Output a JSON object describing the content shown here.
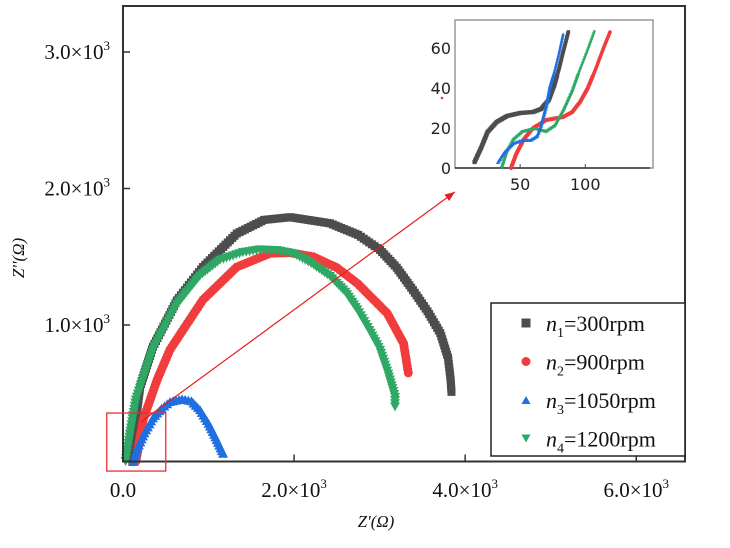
{
  "chart_data": {
    "type": "scatter",
    "title": "",
    "xlabel": "Z'(Ω)",
    "ylabel": "Z''(Ω)",
    "xlim": [
      0,
      6570
    ],
    "ylim": [
      0,
      3337
    ],
    "x_ticks": [
      {
        "value": 0,
        "label": "0.0",
        "mantissa": "0.0",
        "exp": ""
      },
      {
        "value": 2000,
        "label": "2.0×10³",
        "mantissa": "2.0×10",
        "exp": "3"
      },
      {
        "value": 4000,
        "label": "4.0×10³",
        "mantissa": "4.0×10",
        "exp": "3"
      },
      {
        "value": 6000,
        "label": "6.0×10³",
        "mantissa": "6.0×10",
        "exp": "3"
      }
    ],
    "y_ticks": [
      {
        "value": 1000,
        "label": "1.0×10³",
        "mantissa": "1.0×10",
        "exp": "3"
      },
      {
        "value": 2000,
        "label": "2.0×10³",
        "mantissa": "2.0×10",
        "exp": "3"
      },
      {
        "value": 3000,
        "label": "3.0×10³",
        "mantissa": "3.0×10",
        "exp": "3"
      }
    ],
    "grid": false,
    "legend_position": "bottom-right",
    "series": [
      {
        "name": "n1=300rpm",
        "var": "n",
        "sub": "1",
        "rest": "=300rpm",
        "marker": "square",
        "color": "#4d4d4d",
        "points": [
          [
            110,
            0
          ],
          [
            150,
            300
          ],
          [
            200,
            545
          ],
          [
            350,
            840
          ],
          [
            630,
            1180
          ],
          [
            935,
            1425
          ],
          [
            1330,
            1670
          ],
          [
            1650,
            1770
          ],
          [
            1955,
            1790
          ],
          [
            2420,
            1745
          ],
          [
            2750,
            1660
          ],
          [
            3005,
            1550
          ],
          [
            3200,
            1420
          ],
          [
            3390,
            1255
          ],
          [
            3560,
            1100
          ],
          [
            3710,
            940
          ],
          [
            3800,
            760
          ],
          [
            3830,
            600
          ],
          [
            3840,
            510
          ]
        ]
      },
      {
        "name": "n2=900rpm",
        "var": "n",
        "sub": "2",
        "rest": "=900rpm",
        "marker": "circle",
        "color": "#f03c3c",
        "points": [
          [
            150,
            0
          ],
          [
            235,
            305
          ],
          [
            400,
            600
          ],
          [
            550,
            820
          ],
          [
            935,
            1185
          ],
          [
            1330,
            1425
          ],
          [
            1720,
            1525
          ],
          [
            1950,
            1530
          ],
          [
            2225,
            1500
          ],
          [
            2500,
            1420
          ],
          [
            2740,
            1305
          ],
          [
            3090,
            1085
          ],
          [
            3280,
            865
          ],
          [
            3335,
            650
          ]
        ]
      },
      {
        "name": "n3=1050rpm",
        "var": "n",
        "sub": "3",
        "rest": "=1050rpm",
        "marker": "triangle-up",
        "color": "#1f6fe0",
        "points": [
          [
            120,
            0
          ],
          [
            170,
            100
          ],
          [
            250,
            210
          ],
          [
            350,
            320
          ],
          [
            450,
            390
          ],
          [
            550,
            440
          ],
          [
            690,
            460
          ],
          [
            800,
            445
          ],
          [
            900,
            380
          ],
          [
            1000,
            280
          ],
          [
            1080,
            180
          ],
          [
            1170,
            60
          ]
        ]
      },
      {
        "name": "n4=1200rpm",
        "var": "n",
        "sub": "4",
        "rest": "=1200rpm",
        "marker": "triangle-down",
        "color": "#2fa866",
        "points": [
          [
            30,
            0
          ],
          [
            80,
            200
          ],
          [
            150,
            450
          ],
          [
            350,
            820
          ],
          [
            630,
            1150
          ],
          [
            900,
            1360
          ],
          [
            1135,
            1475
          ],
          [
            1400,
            1530
          ],
          [
            1600,
            1550
          ],
          [
            1800,
            1545
          ],
          [
            2000,
            1520
          ],
          [
            2200,
            1450
          ],
          [
            2420,
            1355
          ],
          [
            2600,
            1240
          ],
          [
            2740,
            1110
          ],
          [
            2880,
            960
          ],
          [
            3005,
            815
          ],
          [
            3100,
            640
          ],
          [
            3180,
            470
          ],
          [
            3180,
            400
          ]
        ]
      }
    ],
    "annotations": {
      "zoom_box": {
        "x_range": [
          -190,
          500
        ],
        "y_range": [
          -70,
          355
        ],
        "color": "#e83030"
      },
      "arrow": {
        "from": [
          210,
          290
        ],
        "to": [
          3880,
          1975
        ],
        "color": "#e81c1c"
      }
    },
    "inset": {
      "type": "scatter",
      "xlim": [
        0,
        152
      ],
      "ylim": [
        0,
        74
      ],
      "x_ticks": [
        {
          "value": 50,
          "label": "50"
        },
        {
          "value": 100,
          "label": "100"
        }
      ],
      "y_ticks": [
        {
          "value": 0,
          "label": "0"
        },
        {
          "value": 20,
          "label": "20"
        },
        {
          "value": 40,
          "label": "40"
        },
        {
          "value": 60,
          "label": "60"
        }
      ],
      "series": [
        {
          "name": "n1=300rpm",
          "points": [
            [
              15,
              3
            ],
            [
              20,
              10
            ],
            [
              25,
              18
            ],
            [
              32,
              23
            ],
            [
              40,
              26
            ],
            [
              50,
              27.5
            ],
            [
              60,
              28
            ],
            [
              66,
              29.5
            ],
            [
              72,
              34
            ],
            [
              76,
              41
            ],
            [
              80,
              50
            ],
            [
              83,
              58
            ],
            [
              87,
              68
            ]
          ]
        },
        {
          "name": "n2=900rpm",
          "points": [
            [
              43,
              0
            ],
            [
              47,
              7
            ],
            [
              53,
              14.5
            ],
            [
              60,
              20
            ],
            [
              70,
              24
            ],
            [
              83,
              25.5
            ],
            [
              90,
              28
            ],
            [
              96,
              33
            ],
            [
              102,
              40
            ],
            [
              108,
              49.5
            ],
            [
              114,
              60
            ],
            [
              119,
              68
            ]
          ]
        },
        {
          "name": "n3=1050rpm",
          "points": [
            [
              33,
              3
            ],
            [
              38,
              8
            ],
            [
              45,
              12.5
            ],
            [
              52,
              14
            ],
            [
              58,
              14
            ],
            [
              63,
              16
            ],
            [
              66,
              21
            ],
            [
              70,
              31
            ],
            [
              73,
              41
            ],
            [
              77,
              50
            ],
            [
              80,
              58
            ],
            [
              83,
              67
            ]
          ]
        },
        {
          "name": "n4=1200rpm",
          "points": [
            [
              36,
              0
            ],
            [
              40,
              8
            ],
            [
              45,
              14
            ],
            [
              52,
              18
            ],
            [
              61,
              19.5
            ],
            [
              70,
              18
            ],
            [
              77,
              21
            ],
            [
              83,
              28
            ],
            [
              90,
              38
            ],
            [
              96,
              49
            ],
            [
              102,
              59
            ],
            [
              107,
              68
            ]
          ]
        }
      ]
    }
  }
}
